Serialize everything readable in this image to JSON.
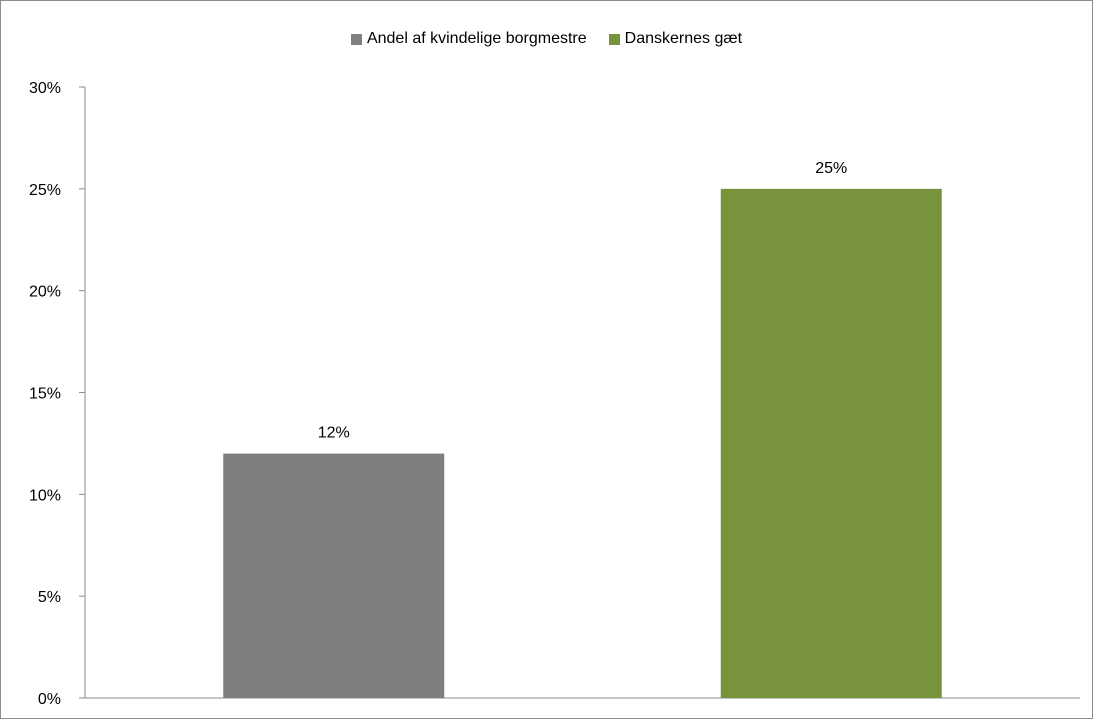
{
  "chart_data": {
    "type": "bar",
    "categories": [
      "Andel af kvindelige borgmestre",
      "Danskernes gæt"
    ],
    "values": [
      12,
      25
    ],
    "data_labels": [
      "12%",
      "25%"
    ],
    "colors": [
      "#7f7f7f",
      "#77933c"
    ],
    "legend": [
      {
        "name": "Andel af kvindelige borgmestre",
        "color": "#7f7f7f"
      },
      {
        "name": "Danskernes gæt",
        "color": "#77933c"
      }
    ],
    "legend_position": "top",
    "y_ticks": [
      "0%",
      "5%",
      "10%",
      "15%",
      "20%",
      "25%",
      "30%"
    ],
    "ylim": [
      0,
      30
    ],
    "unit": "%",
    "grid": false,
    "title": "",
    "xlabel": "",
    "ylabel": ""
  }
}
